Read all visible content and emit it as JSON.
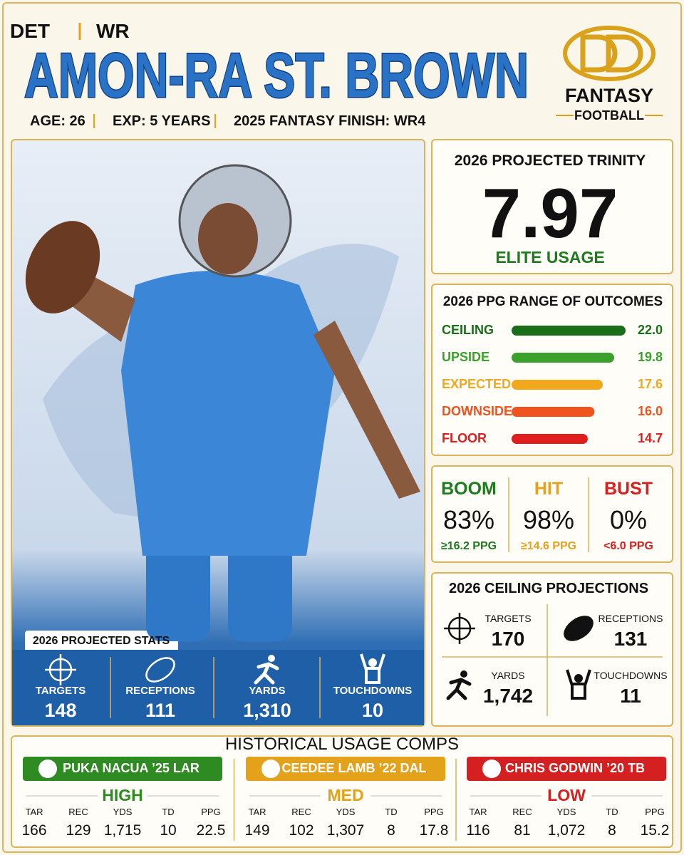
{
  "header": {
    "team": "DET",
    "position": "WR",
    "name": "AMON-RA ST. BROWN",
    "details": [
      "AGE: 26",
      "EXP: 5 YEARS",
      "2025 FANTASY FINISH: WR4"
    ]
  },
  "logo": {
    "top": "FANTASY",
    "bottom": "FOOTBALL"
  },
  "projected_stats": {
    "title": "2026 PROJECTED STATS",
    "items": [
      {
        "label": "TARGETS",
        "value": "148"
      },
      {
        "label": "RECEPTIONS",
        "value": "111"
      },
      {
        "label": "YARDS",
        "value": "1,310"
      },
      {
        "label": "TOUCHDOWNS",
        "value": "10"
      }
    ]
  },
  "trinity": {
    "title": "2026 PROJECTED TRINITY",
    "score": "7.97",
    "tier": "ELITE USAGE"
  },
  "chart_data": {
    "type": "bar",
    "title": "2026 PPG RANGE OF OUTCOMES",
    "categories": [
      "CEILING",
      "UPSIDE",
      "EXPECTED",
      "DOWNSIDE",
      "FLOOR"
    ],
    "values": [
      22,
      19.8,
      17.6,
      16,
      14.7
    ],
    "value_labels": [
      "22.0",
      "19.8",
      "17.6",
      "16.0",
      "14.7"
    ],
    "colors": [
      "#1a6e1a",
      "#3ca02c",
      "#f2a81c",
      "#f0541e",
      "#e01e1e"
    ]
  },
  "outcomes": [
    {
      "label": "BOOM",
      "rate": "83%",
      "threshold": "≥16.2 PPG",
      "color": "#1e7a1e"
    },
    {
      "label": "HIT",
      "rate": "98%",
      "threshold": "≥14.6 PPG",
      "color": "#e8a11a"
    },
    {
      "label": "BUST",
      "rate": "0%",
      "threshold": "<6.0 PPG",
      "color": "#d81e1e"
    }
  ],
  "ceiling_projections": {
    "title": "2026 CEILING PROJECTIONS",
    "items": [
      {
        "label": "TARGETS",
        "value": "170"
      },
      {
        "label": "RECEPTIONS",
        "value": "131"
      },
      {
        "label": "YARDS",
        "value": "1,742"
      },
      {
        "label": "TOUCHDOWNS",
        "value": "11"
      }
    ]
  },
  "comps": {
    "title": "HISTORICAL USAGE COMPS",
    "columns": [
      "TAR",
      "REC",
      "YDS",
      "TD",
      "PPG"
    ],
    "players": [
      {
        "name": "PUKA NACUA ’25 LAR",
        "tier": "HIGH",
        "color": "#2e8b22",
        "stats": [
          "166",
          "129",
          "1,715",
          "10",
          "22.5"
        ]
      },
      {
        "name": "CEEDEE LAMB ’22 DAL",
        "tier": "MED",
        "color": "#e3a21a",
        "stats": [
          "149",
          "102",
          "1,307",
          "8",
          "17.8"
        ]
      },
      {
        "name": "CHRIS GODWIN ’20 TB",
        "tier": "LOW",
        "color": "#d42020",
        "stats": [
          "116",
          "81",
          "1,072",
          "8",
          "15.2"
        ]
      }
    ]
  }
}
